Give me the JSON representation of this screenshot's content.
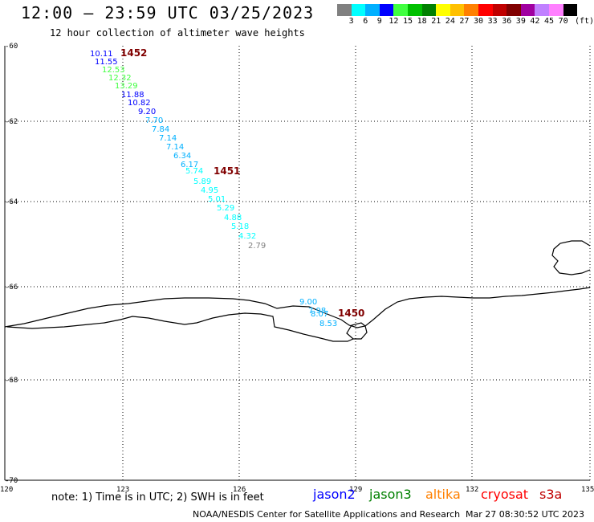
{
  "header": {
    "title": "12:00 – 23:59 UTC 03/25/2023",
    "subtitle": "12 hour collection of altimeter wave heights"
  },
  "colorbar": {
    "colors": [
      "#808080",
      "#00ffff",
      "#00b0ff",
      "#0000ff",
      "#40ff40",
      "#00c000",
      "#008000",
      "#ffff00",
      "#ffc000",
      "#ff8000",
      "#ff0000",
      "#c00000",
      "#800000",
      "#a000a0",
      "#c080ff",
      "#ff80ff",
      "#000000"
    ],
    "labels": [
      "3",
      "6",
      "9",
      "12",
      "15",
      "18",
      "21",
      "24",
      "27",
      "30",
      "33",
      "36",
      "39",
      "42",
      "45",
      "70"
    ],
    "unit": "(ft)"
  },
  "axes": {
    "lat_labels": [
      "-60",
      "-62",
      "-64",
      "-66",
      "-68",
      "-70"
    ],
    "lon_labels": [
      "120",
      "123",
      "126",
      "129",
      "132",
      "135"
    ]
  },
  "wave_obs": [
    {
      "t": "10.11",
      "c": "#0000ff"
    },
    {
      "t": "11.55",
      "c": "#0000ff"
    },
    {
      "t": "12.53",
      "c": "#40ff40"
    },
    {
      "t": "12.32",
      "c": "#40ff40"
    },
    {
      "t": "13.29",
      "c": "#40ff40"
    },
    {
      "t": "11.88",
      "c": "#0000ff"
    },
    {
      "t": "10.82",
      "c": "#0000ff"
    },
    {
      "t": "9.20",
      "c": "#0000ff"
    },
    {
      "t": "7.70",
      "c": "#00b0ff"
    },
    {
      "t": "7.84",
      "c": "#00b0ff"
    },
    {
      "t": "7.14",
      "c": "#00b0ff"
    },
    {
      "t": "7.14",
      "c": "#00b0ff"
    },
    {
      "t": "6.34",
      "c": "#00b0ff"
    },
    {
      "t": "6.17",
      "c": "#00b0ff"
    },
    {
      "t": "5.74",
      "c": "#00ffff"
    },
    {
      "t": "5.89",
      "c": "#00ffff"
    },
    {
      "t": "4.95",
      "c": "#00ffff"
    },
    {
      "t": "5.01",
      "c": "#00ffff"
    },
    {
      "t": "5.29",
      "c": "#00ffff"
    },
    {
      "t": "4.88",
      "c": "#00ffff"
    },
    {
      "t": "5.18",
      "c": "#00ffff"
    },
    {
      "t": "4.32",
      "c": "#00ffff"
    },
    {
      "t": "2.79",
      "c": "#808080"
    },
    {
      "t": "9.00",
      "c": "#00b0ff"
    },
    {
      "t": "7.98",
      "c": "#00b0ff"
    },
    {
      "t": "8.07",
      "c": "#00b0ff"
    },
    {
      "t": "8.53",
      "c": "#00b0ff"
    }
  ],
  "time_labels": [
    "1452",
    "1451",
    "1450"
  ],
  "time_color": "#800000",
  "note": "note: 1) Time is in UTC; 2) SWH is in feet",
  "satellites": [
    {
      "name": "jason2",
      "color": "#0000ff"
    },
    {
      "name": "jason3",
      "color": "#008000"
    },
    {
      "name": "altika",
      "color": "#ff8000"
    },
    {
      "name": "cryosat",
      "color": "#ff0000"
    },
    {
      "name": "s3a",
      "color": "#c00000"
    }
  ],
  "footer": {
    "credit": "NOAA/NESDIS Center for Satellite Applications and Research",
    "timestamp": "Mar 27 08:30:52 UTC 2023"
  }
}
